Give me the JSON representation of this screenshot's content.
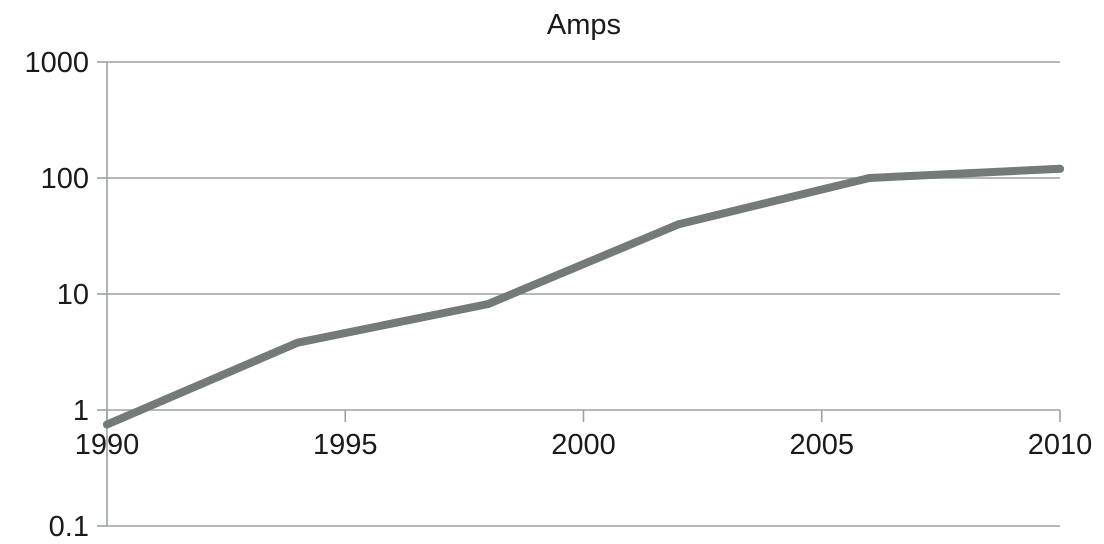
{
  "chart_data": {
    "type": "line",
    "title": "Amps",
    "xlabel": "",
    "ylabel": "",
    "y_scale": "log",
    "ylim": [
      0.1,
      1000
    ],
    "xlim": [
      1990,
      2010
    ],
    "y_ticks": [
      0.1,
      1,
      10,
      100,
      1000
    ],
    "y_tick_labels": [
      "0.1",
      "1",
      "10",
      "100",
      "1000"
    ],
    "x_ticks": [
      1990,
      1995,
      2000,
      2005,
      2010
    ],
    "x_tick_labels": [
      "1990",
      "1995",
      "2000",
      "2005",
      "2010"
    ],
    "grid": "horizontal",
    "legend": "none",
    "series": [
      {
        "color": "#737a78",
        "x": [
          1990,
          1994,
          1998,
          2002,
          2006,
          2010
        ],
        "y": [
          0.75,
          3.8,
          8.2,
          40,
          100,
          120
        ]
      }
    ]
  }
}
